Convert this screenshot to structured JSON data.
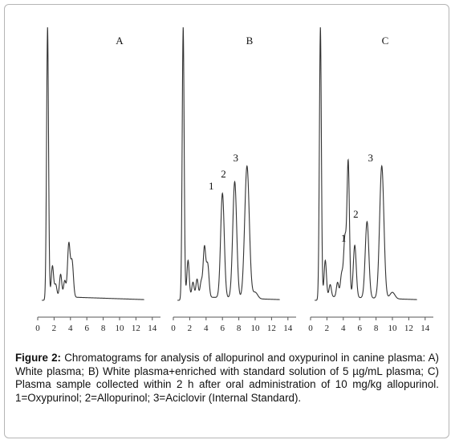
{
  "figure": {
    "caption_label": "Figure 2:",
    "caption_text": "Chromatograms for analysis of allopurinol and oxypurinol in canine plasma: A) White plasma; B) White plasma+enriched with standard solution of 5 µg/mL plasma; C) Plasma sample collected within 2 h after oral administration of 10 mg/kg allopurinol. 1=Oxypurinol; 2=Allopurinol; 3=Aciclovir (Internal Standard)."
  },
  "chart_data": [
    {
      "type": "line",
      "panel_label": "A",
      "xlim": [
        0,
        15
      ],
      "x_ticks": [
        "0",
        "2",
        "4",
        "6",
        "8",
        "10",
        "12",
        "14"
      ],
      "baseline_end_x": 13,
      "peaks": [
        {
          "x": 1.2,
          "height": 335,
          "width": 0.12,
          "label": ""
        },
        {
          "x": 1.8,
          "height": 38,
          "width": 0.14,
          "label": ""
        },
        {
          "x": 2.2,
          "height": 15,
          "width": 0.14,
          "label": ""
        },
        {
          "x": 2.8,
          "height": 28,
          "width": 0.14,
          "label": ""
        },
        {
          "x": 3.3,
          "height": 20,
          "width": 0.14,
          "label": ""
        },
        {
          "x": 3.8,
          "height": 66,
          "width": 0.16,
          "label": ""
        },
        {
          "x": 4.2,
          "height": 44,
          "width": 0.16,
          "label": ""
        }
      ]
    },
    {
      "type": "line",
      "panel_label": "B",
      "xlim": [
        0,
        15
      ],
      "x_ticks": [
        "0",
        "2",
        "4",
        "6",
        "8",
        "10",
        "12",
        "14"
      ],
      "baseline_end_x": 13,
      "peaks": [
        {
          "x": 1.2,
          "height": 335,
          "width": 0.12,
          "label": ""
        },
        {
          "x": 1.8,
          "height": 45,
          "width": 0.14,
          "label": ""
        },
        {
          "x": 2.4,
          "height": 18,
          "width": 0.14,
          "label": ""
        },
        {
          "x": 2.9,
          "height": 22,
          "width": 0.14,
          "label": ""
        },
        {
          "x": 3.4,
          "height": 18,
          "width": 0.14,
          "label": ""
        },
        {
          "x": 3.8,
          "height": 62,
          "width": 0.16,
          "label": ""
        },
        {
          "x": 4.2,
          "height": 40,
          "width": 0.16,
          "label": ""
        },
        {
          "x": 6.0,
          "height": 130,
          "width": 0.22,
          "label": "1"
        },
        {
          "x": 7.5,
          "height": 145,
          "width": 0.24,
          "label": "2"
        },
        {
          "x": 9.0,
          "height": 165,
          "width": 0.28,
          "label": "3"
        },
        {
          "x": 10.0,
          "height": 8,
          "width": 0.3,
          "label": ""
        }
      ]
    },
    {
      "type": "line",
      "panel_label": "C",
      "xlim": [
        0,
        15
      ],
      "x_ticks": [
        "0",
        "2",
        "4",
        "6",
        "8",
        "10",
        "12",
        "14"
      ],
      "baseline_end_x": 13,
      "peaks": [
        {
          "x": 1.2,
          "height": 335,
          "width": 0.12,
          "label": ""
        },
        {
          "x": 1.8,
          "height": 45,
          "width": 0.14,
          "label": ""
        },
        {
          "x": 2.4,
          "height": 15,
          "width": 0.14,
          "label": ""
        },
        {
          "x": 3.3,
          "height": 18,
          "width": 0.14,
          "label": ""
        },
        {
          "x": 3.8,
          "height": 28,
          "width": 0.16,
          "label": ""
        },
        {
          "x": 4.2,
          "height": 72,
          "width": 0.16,
          "label": ""
        },
        {
          "x": 4.6,
          "height": 168,
          "width": 0.15,
          "label": ""
        },
        {
          "x": 5.4,
          "height": 65,
          "width": 0.18,
          "label": "1"
        },
        {
          "x": 6.9,
          "height": 95,
          "width": 0.22,
          "label": "2"
        },
        {
          "x": 8.7,
          "height": 165,
          "width": 0.26,
          "label": "3"
        },
        {
          "x": 10.0,
          "height": 8,
          "width": 0.3,
          "label": ""
        }
      ]
    }
  ]
}
